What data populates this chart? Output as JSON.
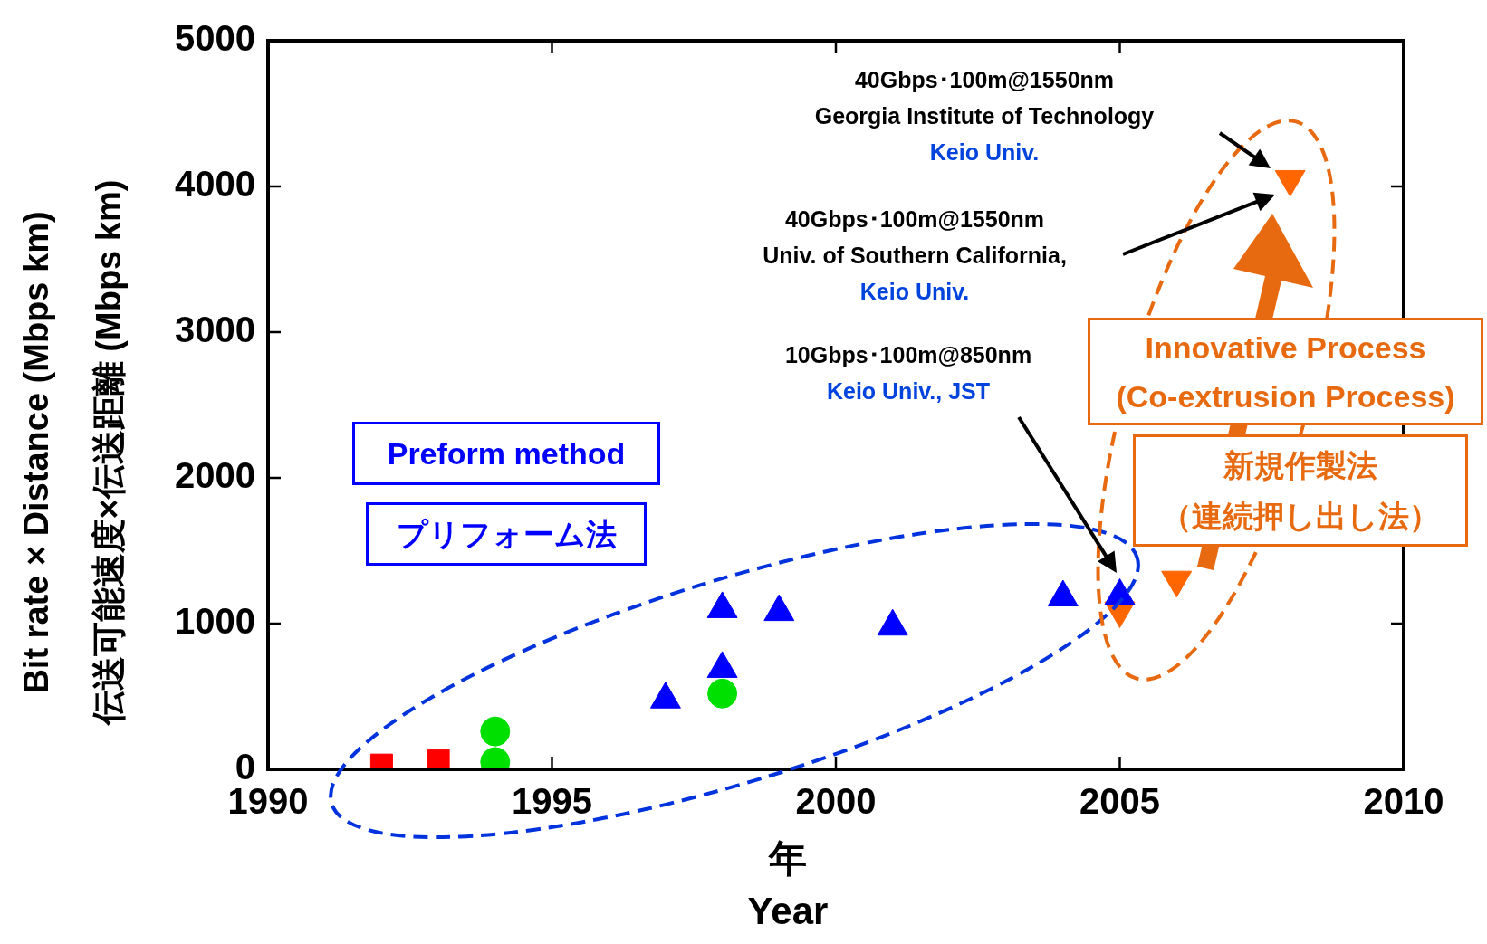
{
  "chart_data": {
    "type": "scatter",
    "xlabel": "年\nYear",
    "ylabel": "Bit rate × Distance (Mbps km)\n伝送可能速度×伝送距離 (Mbps km)",
    "xlim": [
      1990,
      2010
    ],
    "xticks": [
      1990,
      1995,
      2000,
      2005,
      2010
    ],
    "ylim": [
      0,
      5000
    ],
    "yticks": [
      0,
      1000,
      2000,
      3000,
      4000,
      5000
    ],
    "grid": false,
    "legend": false,
    "series": [
      {
        "x": [
          1992,
          1993
        ],
        "values": [
          30,
          60
        ],
        "color": "#ff0000",
        "marker": "square"
      },
      {
        "x": [
          1994,
          1994,
          1998
        ],
        "values": [
          260,
          50,
          520
        ],
        "color": "#00e000",
        "marker": "circle"
      },
      {
        "x": [
          1997,
          1998,
          1998,
          1999,
          2001,
          2004,
          2005
        ],
        "values": [
          480,
          1100,
          690,
          1080,
          980,
          1180,
          1190
        ],
        "color": "#0000ff",
        "marker": "triangle"
      },
      {
        "x": [
          2005,
          2006,
          2008
        ],
        "values": [
          1090,
          1300,
          4050
        ],
        "color": "#ff6600",
        "marker": "triangle_down"
      }
    ],
    "annotations": [
      "40Gbps･100m@1550nm\nGeorgia Institute of Technology\nKeio Univ.",
      "40Gbps･100m@1550nm\nUniv. of Southern California,\nKeio Univ.",
      "10Gbps･100m@850nm\nKeio Univ., JST",
      "Preform method",
      "プリフォーム法",
      "Innovative Process",
      "(Co-extrusion Process)",
      "新規作製法",
      "（連続押し出し法）"
    ]
  }
}
